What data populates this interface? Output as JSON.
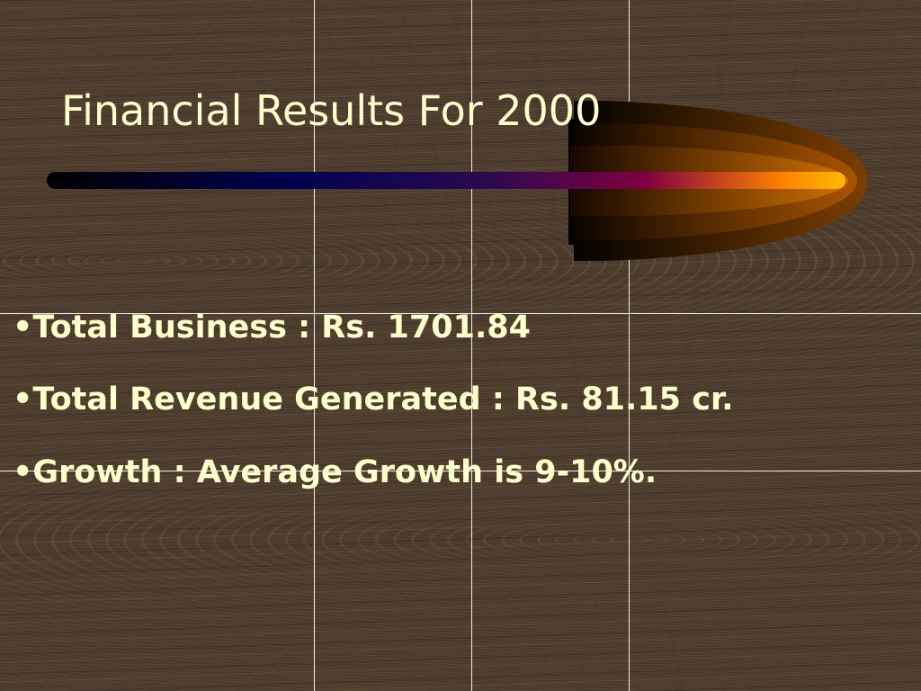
{
  "slide": {
    "title": "Financial Results For 2000",
    "bullets": [
      "•Total Business : Rs. 1701.84",
      "•Total Revenue Generated : Rs. 81.15 cr.",
      "•Growth : Average Growth is 9-10%."
    ],
    "colors": {
      "text": "#ffffcc",
      "background": "#4a3a2c"
    }
  }
}
